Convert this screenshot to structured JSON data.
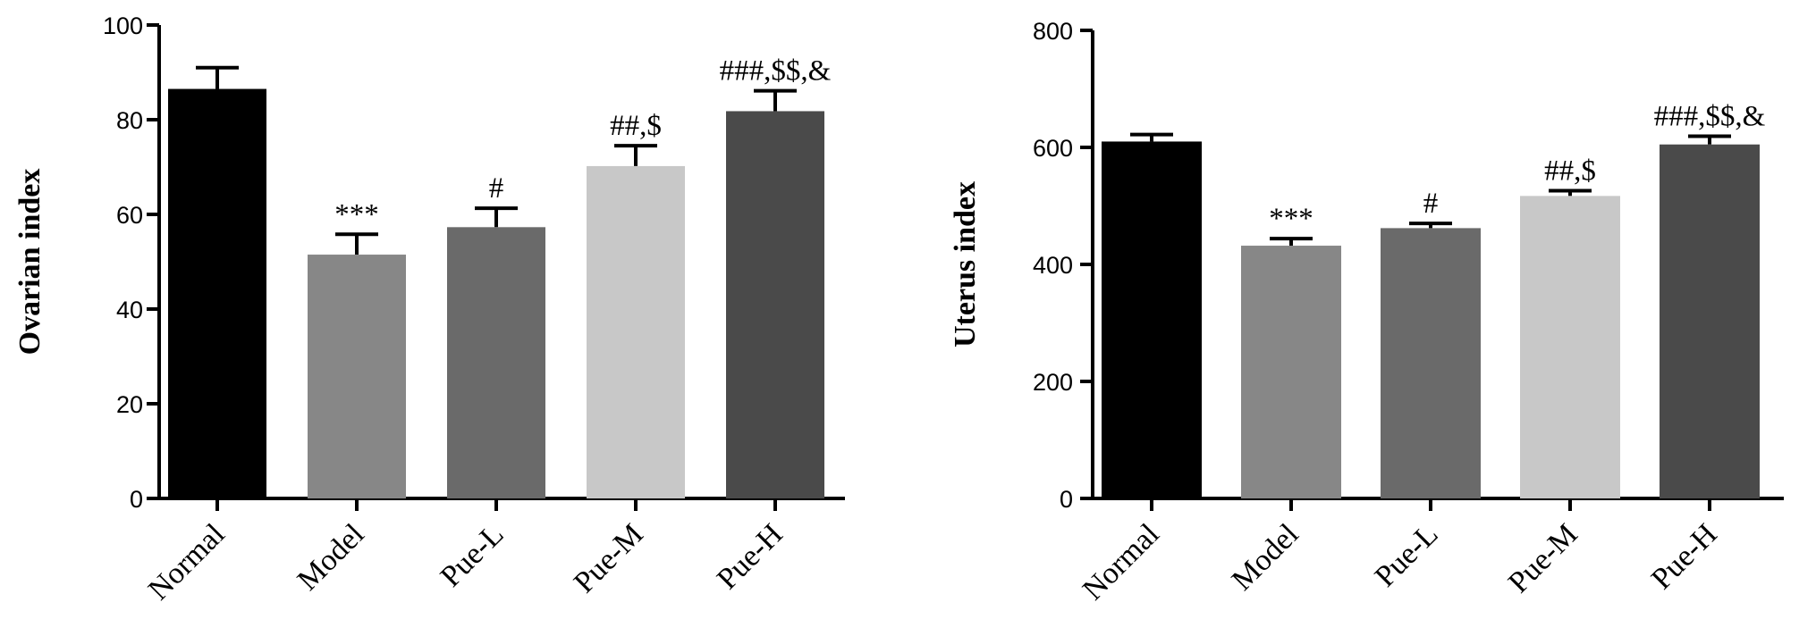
{
  "chart_data": [
    {
      "type": "bar",
      "ylabel": "Ovarian index",
      "ylim": [
        0,
        100
      ],
      "yticks": [
        0,
        20,
        40,
        60,
        80,
        100
      ],
      "categories": [
        "Normal",
        "Model",
        "Pue-L",
        "Pue-M",
        "Pue-H"
      ],
      "values": [
        86.5,
        51.5,
        57.3,
        70.2,
        81.8
      ],
      "errors": [
        4.5,
        4.3,
        4.0,
        4.3,
        4.3
      ],
      "colors": [
        "#000000",
        "#878787",
        "#6a6a6a",
        "#c8c8c8",
        "#4a4a4a"
      ],
      "annotations": [
        "",
        "***",
        "#",
        "##,$",
        "###,$$,&"
      ]
    },
    {
      "type": "bar",
      "ylabel": "Uterus index",
      "ylim": [
        0,
        800
      ],
      "yticks": [
        0,
        200,
        400,
        600,
        800
      ],
      "categories": [
        "Normal",
        "Model",
        "Pue-L",
        "Pue-M",
        "Pue-H"
      ],
      "values": [
        610,
        432,
        462,
        517,
        605
      ],
      "errors": [
        12,
        12,
        8,
        9,
        14
      ],
      "colors": [
        "#000000",
        "#878787",
        "#6a6a6a",
        "#c8c8c8",
        "#4a4a4a"
      ],
      "annotations": [
        "",
        "***",
        "#",
        "##,$",
        "###,$$,&"
      ]
    }
  ]
}
